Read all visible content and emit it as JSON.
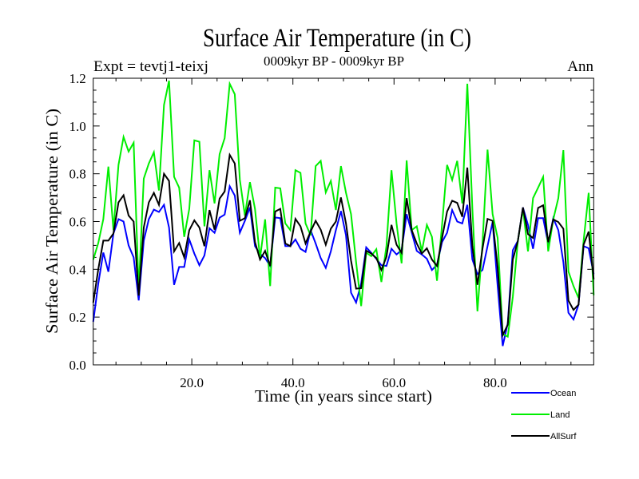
{
  "chart_data": {
    "type": "line",
    "title": "Surface Air Temperature (in C)",
    "subtitle": "0009kyr BP - 0009kyr BP",
    "left_label": "Expt = tevtj1-teixj",
    "right_label": "Ann",
    "xlabel": "Time (in years since start)",
    "ylabel": "Surface Air Temperature (in C)",
    "xlim": [
      0.5,
      99.5
    ],
    "ylim": [
      0.0,
      1.2
    ],
    "xticks": [
      20,
      40,
      60,
      80
    ],
    "xtick_labels": [
      "20.0",
      "40.0",
      "60.0",
      "80.0"
    ],
    "xminor_step": 5,
    "yticks": [
      0.0,
      0.2,
      0.4,
      0.6,
      0.8,
      1.0,
      1.2
    ],
    "ytick_labels": [
      "0.0",
      "0.2",
      "0.4",
      "0.6",
      "0.8",
      "1.0",
      "1.2"
    ],
    "yminor_step": 0.05,
    "grid": false,
    "legend_position": "bottom-right, below plot",
    "x_start": 0.5,
    "x_step": 1,
    "series": [
      {
        "name": "Ocean",
        "color": "#0000ff",
        "values": [
          0.18,
          0.34,
          0.47,
          0.39,
          0.55,
          0.61,
          0.6,
          0.5,
          0.45,
          0.27,
          0.52,
          0.61,
          0.65,
          0.64,
          0.67,
          0.575,
          0.335,
          0.41,
          0.41,
          0.525,
          0.466,
          0.417,
          0.458,
          0.572,
          0.553,
          0.616,
          0.629,
          0.748,
          0.709,
          0.553,
          0.603,
          0.659,
          0.497,
          0.464,
          0.447,
          0.414,
          0.617,
          0.614,
          0.497,
          0.497,
          0.525,
          0.486,
          0.473,
          0.564,
          0.508,
          0.447,
          0.406,
          0.475,
          0.564,
          0.644,
          0.542,
          0.302,
          0.261,
          0.341,
          0.492,
          0.469,
          0.444,
          0.417,
          0.414,
          0.486,
          0.462,
          0.48,
          0.631,
          0.555,
          0.477,
          0.462,
          0.444,
          0.397,
          0.419,
          0.514,
          0.553,
          0.648,
          0.6,
          0.592,
          0.67,
          0.441,
          0.38,
          0.397,
          0.497,
          0.598,
          0.33,
          0.079,
          0.174,
          0.48,
          0.519,
          0.659,
          0.586,
          0.486,
          0.614,
          0.614,
          0.507,
          0.614,
          0.564,
          0.43,
          0.218,
          0.19,
          0.252,
          0.497,
          0.488,
          0.38
        ]
      },
      {
        "name": "Land",
        "color": "#00ee00",
        "values": [
          0.44,
          0.51,
          0.61,
          0.83,
          0.564,
          0.837,
          0.954,
          0.893,
          0.93,
          0.31,
          0.78,
          0.843,
          0.89,
          0.73,
          1.088,
          1.19,
          0.787,
          0.742,
          0.536,
          0.653,
          0.94,
          0.934,
          0.58,
          0.815,
          0.676,
          0.882,
          0.949,
          1.177,
          1.133,
          0.776,
          0.625,
          0.765,
          0.653,
          0.447,
          0.609,
          0.33,
          0.742,
          0.739,
          0.592,
          0.564,
          0.815,
          0.804,
          0.592,
          0.542,
          0.832,
          0.854,
          0.722,
          0.77,
          0.648,
          0.832,
          0.72,
          0.631,
          0.43,
          0.246,
          0.47,
          0.455,
          0.484,
          0.347,
          0.497,
          0.815,
          0.592,
          0.425,
          0.856,
          0.564,
          0.58,
          0.475,
          0.586,
          0.536,
          0.352,
          0.586,
          0.837,
          0.774,
          0.854,
          0.676,
          1.177,
          0.653,
          0.224,
          0.508,
          0.901,
          0.631,
          0.531,
          0.129,
          0.118,
          0.285,
          0.519,
          0.653,
          0.475,
          0.698,
          0.742,
          0.787,
          0.475,
          0.609,
          0.698,
          0.899,
          0.391,
          0.33,
          0.28,
          0.519,
          0.72,
          0.291
        ]
      },
      {
        "name": "AllSurf",
        "color": "#000000",
        "values": [
          0.26,
          0.4,
          0.52,
          0.52,
          0.55,
          0.68,
          0.71,
          0.625,
          0.6,
          0.29,
          0.575,
          0.68,
          0.72,
          0.67,
          0.8,
          0.77,
          0.475,
          0.51,
          0.45,
          0.564,
          0.605,
          0.575,
          0.497,
          0.648,
          0.566,
          0.696,
          0.726,
          0.879,
          0.843,
          0.603,
          0.614,
          0.689,
          0.514,
          0.441,
          0.477,
          0.414,
          0.642,
          0.653,
          0.508,
          0.497,
          0.611,
          0.58,
          0.508,
          0.558,
          0.603,
          0.566,
          0.503,
          0.57,
          0.6,
          0.701,
          0.592,
          0.436,
          0.319,
          0.321,
          0.478,
          0.466,
          0.447,
          0.397,
          0.452,
          0.586,
          0.503,
          0.469,
          0.698,
          0.564,
          0.508,
          0.466,
          0.488,
          0.441,
          0.414,
          0.531,
          0.642,
          0.687,
          0.678,
          0.62,
          0.826,
          0.497,
          0.335,
          0.486,
          0.611,
          0.603,
          0.408,
          0.124,
          0.168,
          0.441,
          0.519,
          0.659,
          0.547,
          0.531,
          0.657,
          0.668,
          0.514,
          0.609,
          0.598,
          0.57,
          0.269,
          0.23,
          0.252,
          0.503,
          0.558,
          0.358
        ]
      }
    ]
  }
}
